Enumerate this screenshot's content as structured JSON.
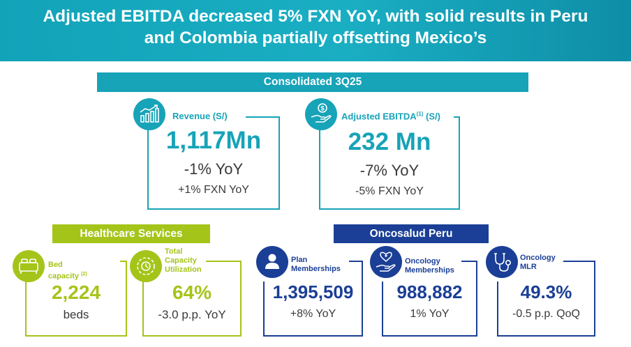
{
  "header": {
    "title_line1": "Adjusted EBITDA decreased 5% FXN YoY, with solid results in Peru",
    "title_line2": "and Colombia partially offsetting Mexico’s"
  },
  "consolidated": {
    "banner": "Consolidated 3Q25",
    "revenue": {
      "label": "Revenue (S/)",
      "value": "1,117Mn",
      "yoy": "-1% YoY",
      "fxn": "+1% FXN YoY",
      "icon": "growth-chart-icon"
    },
    "ebitda": {
      "label": "Adjusted EBITDA",
      "sup": "(1)",
      "unit": "(S/)",
      "value": "232 Mn",
      "yoy": "-7% YoY",
      "fxn": "-5% FXN YoY",
      "icon": "money-hand-icon"
    }
  },
  "healthcare": {
    "banner": "Healthcare Services",
    "bed": {
      "label_line1": "Bed",
      "label_line2": "capacity",
      "sup": "(2)",
      "value": "2,224",
      "unit": "beds",
      "icon": "bed-icon"
    },
    "utilization": {
      "label_line1": "Total",
      "label_line2": "Capacity",
      "label_line3": "Utilization",
      "value": "64%",
      "change": "-3.0 p.p. YoY",
      "icon": "gear-cycle-icon"
    }
  },
  "oncosalud": {
    "banner": "Oncosalud Peru",
    "plan": {
      "label_line1": "Plan",
      "label_line2": "Memberships",
      "value": "1,395,509",
      "change": "+8% YoY",
      "icon": "person-icon"
    },
    "oncology": {
      "label_line1": "Oncology",
      "label_line2": "Memberships",
      "value": "988,882",
      "change": "1% YoY",
      "icon": "heart-hand-icon"
    },
    "mlr": {
      "label_line1": "Oncology",
      "label_line2": "MLR",
      "value": "49.3%",
      "change": "-0.5 p.p. QoQ",
      "icon": "stethoscope-icon"
    }
  },
  "colors": {
    "teal": "#17a3b8",
    "lime": "#a5c41a",
    "navy": "#1b3f96"
  }
}
